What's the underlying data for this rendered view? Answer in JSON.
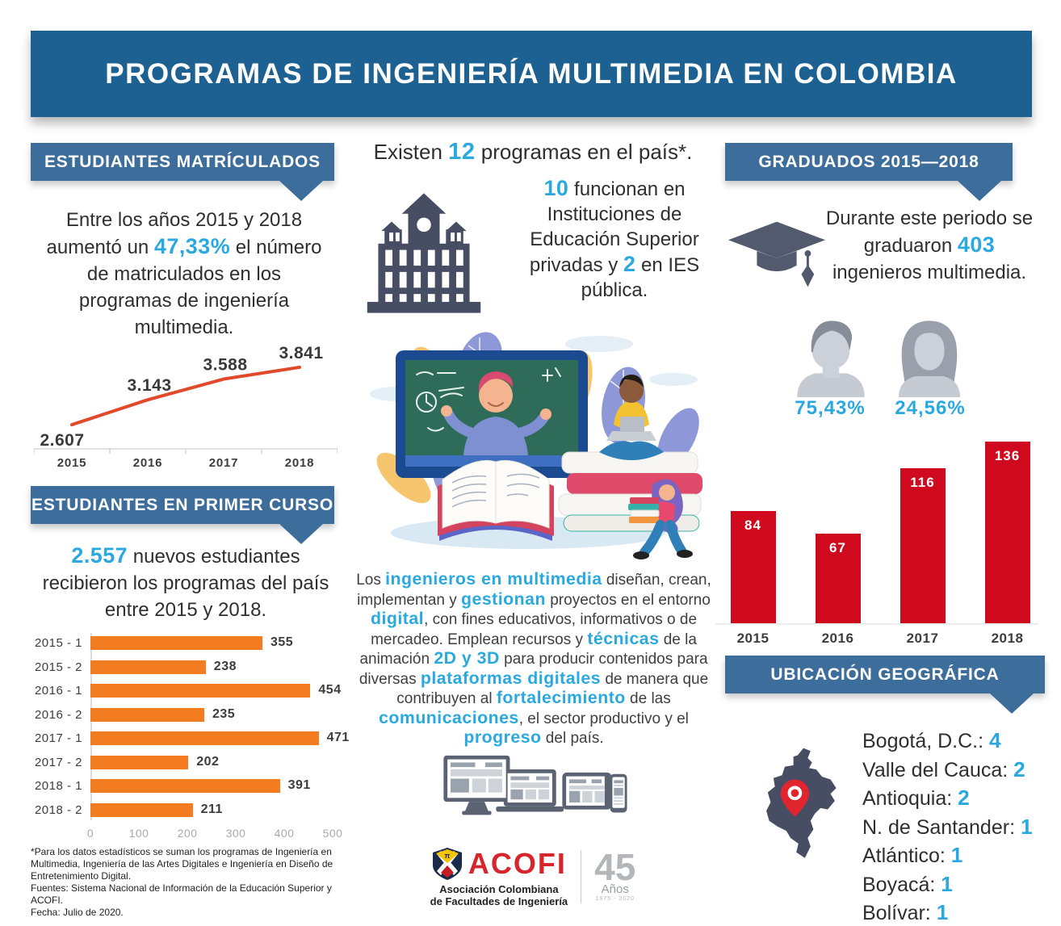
{
  "colors": {
    "header_bg": "#1d6193",
    "banner_bg": "#3c6d9b",
    "accent_cyan": "#29a9df",
    "orange": "#f47c20",
    "line_red": "#e04a2a",
    "bar_red": "#cf0a1e",
    "slate_icon": "#474d63",
    "text": "#3d3d3d"
  },
  "header": {
    "title": "PROGRAMAS DE INGENIERÍA MULTIMEDIA EN COLOMBIA"
  },
  "left": {
    "matriculados": {
      "banner": "ESTUDIANTES MATRÍCULADOS",
      "text": [
        {
          "t": "Entre los años 2015 y 2018 aumentó un "
        },
        {
          "t": "47,33%",
          "hl": true
        },
        {
          "t": " el número de matriculados en los programas de ingeniería multimedia."
        }
      ]
    },
    "primer_curso": {
      "banner": "ESTUDIANTES EN PRIMER CURSO",
      "text": [
        {
          "t": "2.557",
          "hl": true
        },
        {
          "t": " nuevos estudiantes recibieron los programas del país entre 2015 y 2018."
        }
      ]
    },
    "footnote": [
      "*Para los datos estadísticos se suman los programas de Ingeniería en Multimedia, Ingeniería de las Artes Digitales e Ingeniería en Diseño de Entretenimiento Digital.",
      "Fuentes: Sistema Nacional de Información de la Educación Superior y ACOFI.",
      "Fecha: Julio de 2020."
    ]
  },
  "middle": {
    "intro": [
      {
        "t": "Existen "
      },
      {
        "t": "12",
        "hl": true
      },
      {
        "t": " programas en el país*."
      }
    ],
    "ies": [
      {
        "t": "10",
        "hl": true
      },
      {
        "t": " funcionan en Instituciones de Educación Superior privadas y "
      },
      {
        "t": "2",
        "hl": true
      },
      {
        "t": " en IES pública."
      }
    ],
    "description": [
      {
        "t": "Los "
      },
      {
        "t": "ingenieros en multimedia",
        "hl": true
      },
      {
        "t": " diseñan, crean, implementan y "
      },
      {
        "t": "gestionan",
        "hl": true
      },
      {
        "t": " proyectos en el entorno "
      },
      {
        "t": "digital",
        "hl": true
      },
      {
        "t": ", con fines educativos, informativos o de mercadeo. Emplean recursos y "
      },
      {
        "t": "técnicas",
        "hl": true
      },
      {
        "t": " de la animación "
      },
      {
        "t": "2D y 3D",
        "hl": true
      },
      {
        "t": " para producir contenidos para diversas "
      },
      {
        "t": "plataformas digitales",
        "hl": true
      },
      {
        "t": " de manera que contribuyen al "
      },
      {
        "t": "fortalecimiento",
        "hl": true
      },
      {
        "t": " de las "
      },
      {
        "t": "comunicaciones",
        "hl": true
      },
      {
        "t": ", el sector productivo y el "
      },
      {
        "t": "progreso",
        "hl": true
      },
      {
        "t": " del país."
      }
    ],
    "logo": {
      "name": "ACOFI",
      "line1": "Asociación Colombiana",
      "line2": "de Facultades de Ingeniería",
      "anniversary_number": "45",
      "anniversary_label": "Años",
      "anniversary_years": "1975 - 2020"
    }
  },
  "right": {
    "graduados": {
      "banner": "GRADUADOS 2015—2018",
      "text": [
        {
          "t": "Durante este periodo se graduaron "
        },
        {
          "t": "403",
          "hl": true
        },
        {
          "t": " ingenieros multimedia."
        }
      ],
      "male_pct": "75,43%",
      "female_pct": "24,56%"
    },
    "ubicacion": {
      "banner": "UBICACIÓN GEOGRÁFICA",
      "items": [
        {
          "label": "Bogotá, D.C.:",
          "value": "4"
        },
        {
          "label": "Valle del Cauca:",
          "value": "2"
        },
        {
          "label": "Antioquia:",
          "value": "2"
        },
        {
          "label": "N. de Santander:",
          "value": "1"
        },
        {
          "label": "Atlántico:",
          "value": "1"
        },
        {
          "label": "Boyacá:",
          "value": "1"
        },
        {
          "label": "Bolívar:",
          "value": "1"
        }
      ]
    }
  },
  "chart_data": [
    {
      "id": "matriculados_line",
      "type": "line",
      "title": "Estudiantes matriculados 2015-2018",
      "categories": [
        "2015",
        "2016",
        "2017",
        "2018"
      ],
      "values": [
        2607,
        3143,
        3588,
        3841
      ],
      "labels": [
        "2.607",
        "3.143",
        "3.588",
        "3.841"
      ],
      "xlabel": "",
      "ylabel": "",
      "ylim": [
        2400,
        4100
      ],
      "line_color": "#e04a2a",
      "grid": false,
      "legend": "none"
    },
    {
      "id": "primer_curso_bars",
      "type": "bar",
      "orientation": "horizontal",
      "title": "Estudiantes en primer curso por semestre",
      "categories": [
        "2015 - 1",
        "2015 - 2",
        "2016 - 1",
        "2016 - 2",
        "2017 - 1",
        "2017 - 2",
        "2018 - 1",
        "2018 - 2"
      ],
      "values": [
        355,
        238,
        454,
        235,
        471,
        202,
        391,
        211
      ],
      "xlim": [
        0,
        500
      ],
      "xticks": [
        0,
        100,
        200,
        300,
        400,
        500
      ],
      "bar_color": "#f47c20",
      "grid": false,
      "legend": "none"
    },
    {
      "id": "graduados_bars",
      "type": "bar",
      "orientation": "vertical",
      "title": "Graduados por año",
      "categories": [
        "2015",
        "2016",
        "2017",
        "2018"
      ],
      "values": [
        84,
        67,
        116,
        136
      ],
      "ylim": [
        0,
        140
      ],
      "bar_color": "#cf0a1e",
      "value_label_color": "#ffffff",
      "grid": false,
      "legend": "none"
    }
  ]
}
